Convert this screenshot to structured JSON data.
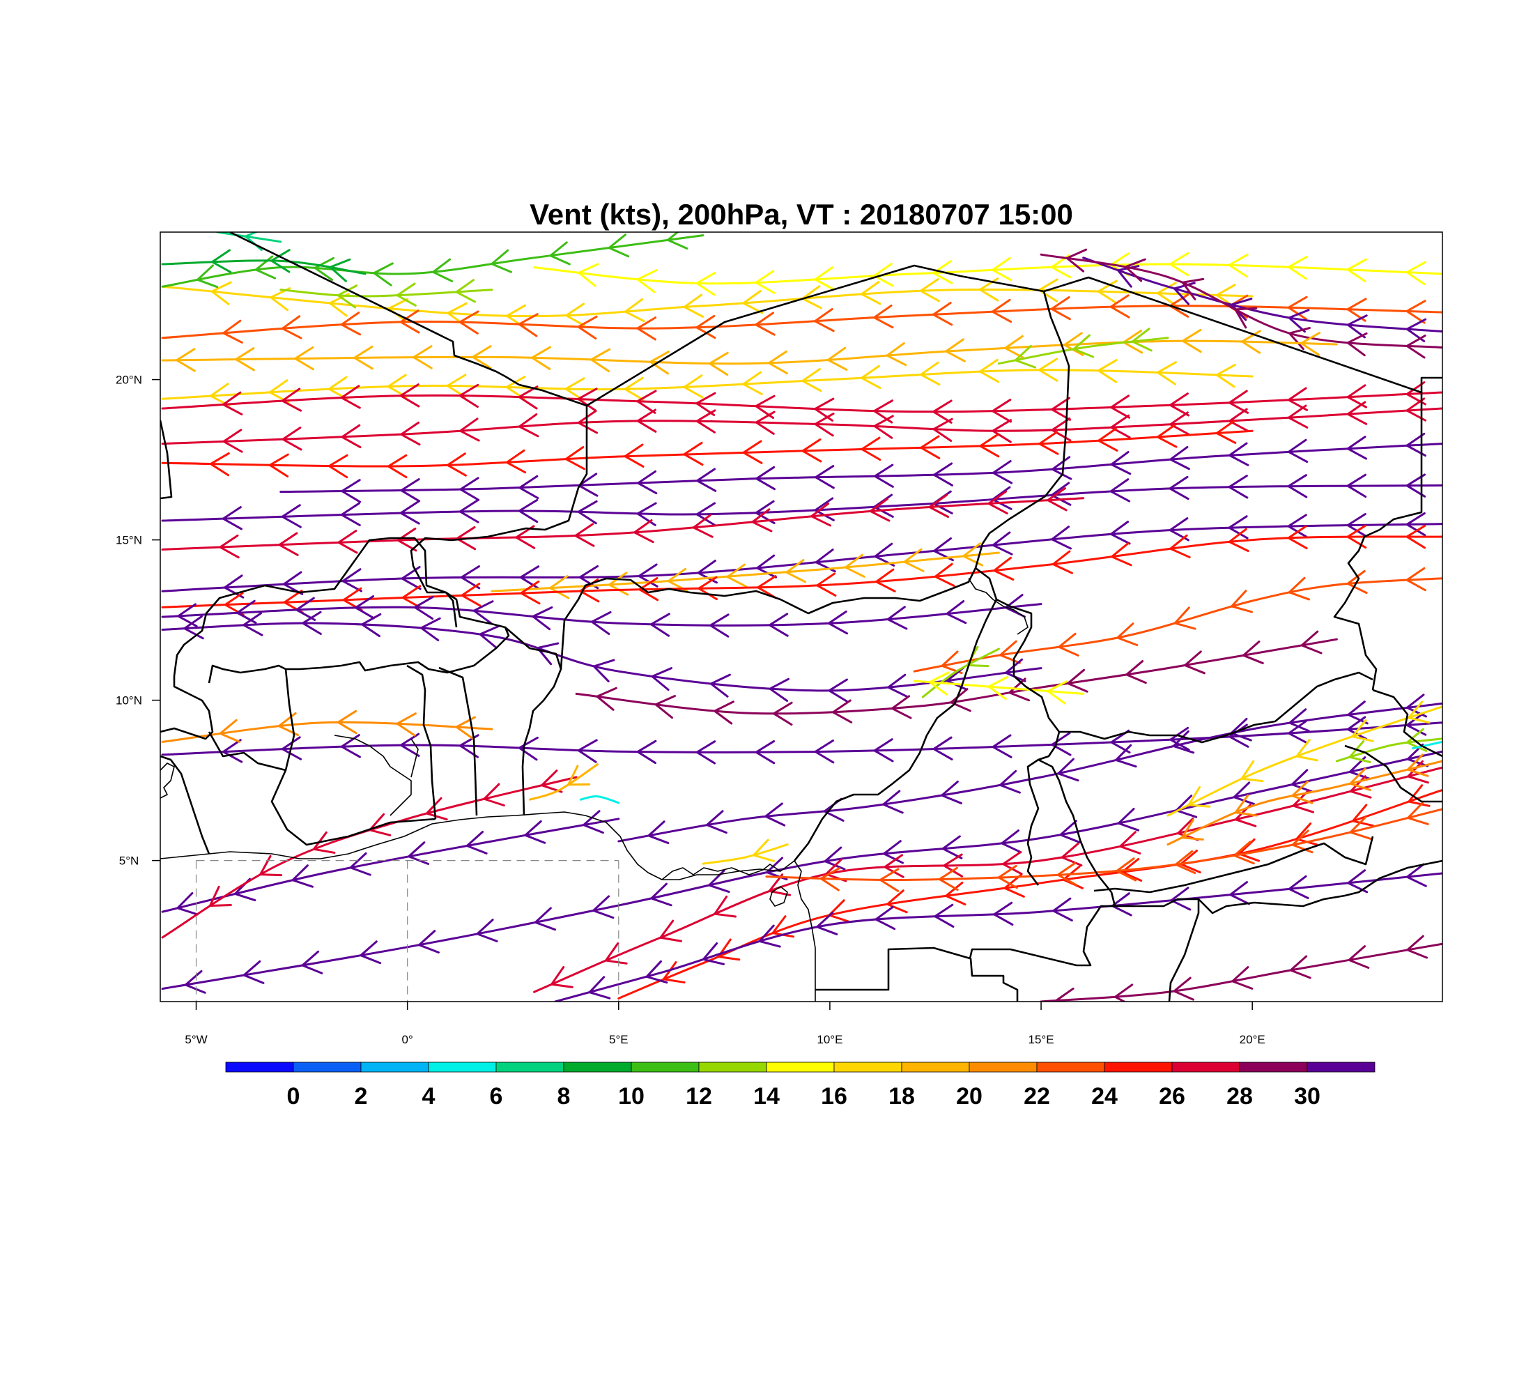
{
  "title": "Vent (kts), 200hPa, VT : 20180707  15:00",
  "map": {
    "lon_range": [
      -5.85,
      24.5
    ],
    "lat_range": [
      0.6,
      24.6
    ],
    "lon_ticks": [
      {
        "value": -5,
        "label": "5°W"
      },
      {
        "value": 0,
        "label": "0°"
      },
      {
        "value": 5,
        "label": "5°E"
      },
      {
        "value": 10,
        "label": "10°E"
      },
      {
        "value": 15,
        "label": "15°E"
      },
      {
        "value": 20,
        "label": "20°E"
      }
    ],
    "lat_ticks": [
      {
        "value": 5,
        "label": "5°N"
      },
      {
        "value": 10,
        "label": "10°N"
      },
      {
        "value": 15,
        "label": "15°N"
      },
      {
        "value": 20,
        "label": "20°N"
      }
    ],
    "dashed_grid": {
      "lat": 5,
      "lons": [
        -5,
        0,
        5
      ]
    }
  },
  "colorbar": {
    "labels": [
      "0",
      "2",
      "4",
      "6",
      "8",
      "10",
      "12",
      "14",
      "16",
      "18",
      "20",
      "22",
      "24",
      "26",
      "28",
      "30"
    ],
    "colors": [
      "#0a0aff",
      "#0a60f5",
      "#00b4f5",
      "#00f0e6",
      "#00d27d",
      "#00aa2d",
      "#3cbe14",
      "#96d700",
      "#ffff00",
      "#ffd700",
      "#ffb400",
      "#ff8c00",
      "#ff5000",
      "#ff1400",
      "#dc0032",
      "#8c005a",
      "#5a0096"
    ]
  },
  "chart_data": {
    "type": "streamline",
    "variable": "Vent (kts)",
    "level": "200hPa",
    "valid_time": "20180707  15:00",
    "streamlines": [
      {
        "speed": 15,
        "points": [
          [
            24.5,
            23.3
          ],
          [
            18,
            23.6
          ],
          [
            12,
            23.3
          ],
          [
            7,
            23.0
          ],
          [
            3,
            23.5
          ]
        ]
      },
      {
        "speed": 17,
        "points": [
          [
            20,
            22.6
          ],
          [
            13,
            22.8
          ],
          [
            7,
            22.3
          ],
          [
            2,
            22.0
          ],
          [
            -5.8,
            22.9
          ]
        ]
      },
      {
        "speed": 22,
        "points": [
          [
            24.5,
            22.1
          ],
          [
            18,
            22.3
          ],
          [
            12,
            22.0
          ],
          [
            6,
            21.6
          ],
          [
            0,
            21.8
          ],
          [
            -5.8,
            21.3
          ]
        ]
      },
      {
        "speed": 30,
        "points": [
          [
            24.5,
            21.5
          ],
          [
            21,
            21.9
          ],
          [
            18,
            22.9
          ],
          [
            16,
            23.8
          ]
        ]
      },
      {
        "speed": 28,
        "points": [
          [
            24.5,
            21.0
          ],
          [
            21,
            21.4
          ],
          [
            18,
            23.2
          ],
          [
            15,
            23.9
          ]
        ]
      },
      {
        "speed": 19,
        "points": [
          [
            22,
            21.1
          ],
          [
            18,
            21.2
          ],
          [
            13,
            20.9
          ],
          [
            8,
            20.5
          ],
          [
            2,
            20.7
          ],
          [
            -5.8,
            20.6
          ]
        ]
      },
      {
        "speed": 16,
        "points": [
          [
            20,
            20.1
          ],
          [
            15,
            20.3
          ],
          [
            10,
            20.0
          ],
          [
            5,
            19.7
          ],
          [
            0,
            19.8
          ],
          [
            -5.8,
            19.4
          ]
        ]
      },
      {
        "speed": 26,
        "points": [
          [
            24.5,
            19.6
          ],
          [
            18,
            19.2
          ],
          [
            12,
            19.0
          ],
          [
            6,
            19.3
          ],
          [
            0,
            19.5
          ],
          [
            -5.8,
            19.1
          ]
        ]
      },
      {
        "speed": 26,
        "points": [
          [
            24.5,
            19.1
          ],
          [
            18,
            18.6
          ],
          [
            14,
            18.4
          ],
          [
            10,
            18.6
          ],
          [
            5,
            18.7
          ],
          [
            0,
            18.3
          ],
          [
            -5.8,
            18.0
          ]
        ]
      },
      {
        "speed": 24,
        "points": [
          [
            20,
            18.4
          ],
          [
            15,
            18.0
          ],
          [
            10,
            17.8
          ],
          [
            5,
            17.6
          ],
          [
            0,
            17.3
          ],
          [
            -5.8,
            17.4
          ]
        ]
      },
      {
        "speed": 30,
        "points": [
          [
            24.5,
            18.0
          ],
          [
            19,
            17.6
          ],
          [
            14,
            17.1
          ],
          [
            8,
            16.9
          ],
          [
            2,
            16.6
          ],
          [
            -3,
            16.5
          ]
        ]
      },
      {
        "speed": 30,
        "points": [
          [
            24.5,
            16.7
          ],
          [
            18,
            16.6
          ],
          [
            12,
            16.1
          ],
          [
            7,
            15.8
          ],
          [
            2,
            15.9
          ],
          [
            -5.8,
            15.6
          ]
        ]
      },
      {
        "speed": 26,
        "points": [
          [
            16,
            16.3
          ],
          [
            11,
            15.9
          ],
          [
            5,
            15.2
          ],
          [
            0,
            15.0
          ],
          [
            -5.8,
            14.7
          ]
        ]
      },
      {
        "speed": 30,
        "points": [
          [
            24.5,
            15.5
          ],
          [
            18,
            15.3
          ],
          [
            12,
            14.6
          ],
          [
            6,
            13.9
          ],
          [
            0,
            13.8
          ],
          [
            -5.8,
            13.4
          ]
        ]
      },
      {
        "speed": 18,
        "points": [
          [
            14,
            14.6
          ],
          [
            10,
            14.1
          ],
          [
            6,
            13.7
          ],
          [
            2,
            13.4
          ]
        ]
      },
      {
        "speed": 24,
        "points": [
          [
            24.5,
            15.1
          ],
          [
            20,
            15.0
          ],
          [
            15,
            14.2
          ],
          [
            10,
            13.6
          ],
          [
            4,
            13.4
          ],
          [
            -5.8,
            12.9
          ]
        ]
      },
      {
        "speed": 30,
        "points": [
          [
            15,
            13.0
          ],
          [
            10,
            12.4
          ],
          [
            5,
            12.4
          ],
          [
            0,
            12.9
          ],
          [
            -5.8,
            12.6
          ]
        ]
      },
      {
        "speed": 22,
        "points": [
          [
            24.5,
            13.8
          ],
          [
            22,
            13.6
          ],
          [
            20,
            13.1
          ],
          [
            17,
            12.0
          ],
          [
            14,
            11.4
          ],
          [
            12,
            10.9
          ]
        ]
      },
      {
        "speed": 30,
        "points": [
          [
            15,
            11.0
          ],
          [
            10,
            10.3
          ],
          [
            5,
            10.9
          ],
          [
            2,
            12.0
          ],
          [
            -2,
            12.4
          ],
          [
            -5.8,
            12.2
          ]
        ]
      },
      {
        "speed": 28,
        "points": [
          [
            22,
            11.9
          ],
          [
            18,
            11.0
          ],
          [
            15,
            10.4
          ],
          [
            12,
            9.8
          ],
          [
            8,
            9.6
          ],
          [
            4,
            10.2
          ]
        ]
      },
      {
        "speed": 30,
        "points": [
          [
            24.5,
            9.3
          ],
          [
            20,
            8.9
          ],
          [
            15,
            8.6
          ],
          [
            10,
            8.4
          ],
          [
            5,
            8.4
          ],
          [
            0,
            8.6
          ],
          [
            -5.8,
            8.3
          ]
        ]
      },
      {
        "speed": 20,
        "points": [
          [
            2,
            9.1
          ],
          [
            -2,
            9.3
          ],
          [
            -5.8,
            8.7
          ]
        ]
      },
      {
        "speed": 30,
        "points": [
          [
            24.5,
            9.9
          ],
          [
            20,
            9.1
          ],
          [
            15,
            7.6
          ],
          [
            11,
            6.7
          ],
          [
            8,
            6.3
          ],
          [
            5,
            5.6
          ]
        ]
      },
      {
        "speed": 30,
        "points": [
          [
            24.5,
            8.4
          ],
          [
            20,
            7.1
          ],
          [
            15,
            5.7
          ],
          [
            10,
            5.0
          ],
          [
            5,
            3.6
          ],
          [
            0,
            2.3
          ],
          [
            -5.8,
            1.0
          ]
        ]
      },
      {
        "speed": 26,
        "points": [
          [
            24.5,
            7.9
          ],
          [
            20,
            6.4
          ],
          [
            15,
            5.0
          ],
          [
            10,
            4.6
          ],
          [
            6,
            2.6
          ],
          [
            3,
            0.9
          ]
        ]
      },
      {
        "speed": 24,
        "points": [
          [
            24.5,
            7.2
          ],
          [
            20,
            5.3
          ],
          [
            15,
            4.3
          ],
          [
            10,
            3.3
          ],
          [
            7,
            1.8
          ],
          [
            5,
            0.7
          ]
        ]
      },
      {
        "speed": 30,
        "points": [
          [
            24.5,
            4.6
          ],
          [
            20,
            4.0
          ],
          [
            15,
            3.4
          ],
          [
            10,
            3.0
          ],
          [
            6,
            1.5
          ],
          [
            3.5,
            0.6
          ]
        ]
      },
      {
        "speed": 30,
        "points": [
          [
            5,
            6.3
          ],
          [
            2,
            5.6
          ],
          [
            -2,
            4.6
          ],
          [
            -5.8,
            3.4
          ]
        ]
      },
      {
        "speed": 26,
        "points": [
          [
            4,
            7.6
          ],
          [
            0,
            6.3
          ],
          [
            -3,
            4.9
          ],
          [
            -5.8,
            2.6
          ]
        ]
      },
      {
        "speed": 22,
        "points": [
          [
            24.5,
            6.6
          ],
          [
            21,
            5.5
          ],
          [
            17,
            4.7
          ],
          [
            12,
            4.4
          ],
          [
            8.5,
            4.5
          ]
        ]
      },
      {
        "speed": 28,
        "points": [
          [
            24.5,
            2.4
          ],
          [
            21,
            1.6
          ],
          [
            18,
            0.9
          ],
          [
            15,
            0.6
          ]
        ]
      },
      {
        "speed": 12,
        "points": [
          [
            24.5,
            8.8
          ],
          [
            23.3,
            8.6
          ],
          [
            22,
            8.1
          ]
        ]
      },
      {
        "speed": 4,
        "points": [
          [
            24.5,
            8.7
          ],
          [
            23.8,
            8.5
          ]
        ]
      },
      {
        "speed": 16,
        "points": [
          [
            24.5,
            9.8
          ],
          [
            22,
            8.7
          ],
          [
            20,
            7.7
          ],
          [
            18,
            6.4
          ]
        ]
      },
      {
        "speed": 20,
        "points": [
          [
            24.5,
            8.1
          ],
          [
            22,
            7.3
          ],
          [
            20,
            6.7
          ],
          [
            18,
            5.5
          ]
        ]
      },
      {
        "speed": 12,
        "points": [
          [
            14,
            11.6
          ],
          [
            13,
            10.9
          ],
          [
            12.2,
            10.1
          ]
        ]
      },
      {
        "speed": 15,
        "points": [
          [
            16,
            10.2
          ],
          [
            14,
            10.4
          ],
          [
            12,
            10.6
          ]
        ]
      },
      {
        "speed": 12,
        "points": [
          [
            18,
            21.3
          ],
          [
            16,
            21.0
          ],
          [
            14,
            20.5
          ]
        ]
      },
      {
        "speed": 11,
        "points": [
          [
            7,
            24.5
          ],
          [
            3,
            23.8
          ],
          [
            0,
            23.3
          ],
          [
            -3,
            23.5
          ],
          [
            -5.8,
            22.9
          ]
        ]
      },
      {
        "speed": 8,
        "points": [
          [
            -1,
            23.3
          ],
          [
            -3,
            23.7
          ],
          [
            -5.8,
            23.6
          ]
        ]
      },
      {
        "speed": 6,
        "points": [
          [
            -3,
            24.3
          ],
          [
            -4.5,
            24.6
          ]
        ]
      },
      {
        "speed": 13,
        "points": [
          [
            2,
            22.8
          ],
          [
            -1,
            22.6
          ],
          [
            -3,
            22.8
          ]
        ]
      },
      {
        "speed": 4,
        "points": [
          [
            5,
            6.8
          ],
          [
            4.5,
            7.0
          ],
          [
            4.1,
            6.9
          ]
        ]
      },
      {
        "speed": 18,
        "points": [
          [
            4.5,
            8.0
          ],
          [
            3.6,
            7.2
          ],
          [
            2.9,
            6.9
          ]
        ]
      },
      {
        "speed": 16,
        "points": [
          [
            9,
            5.5
          ],
          [
            8,
            5.1
          ],
          [
            7,
            4.9
          ]
        ]
      }
    ]
  }
}
